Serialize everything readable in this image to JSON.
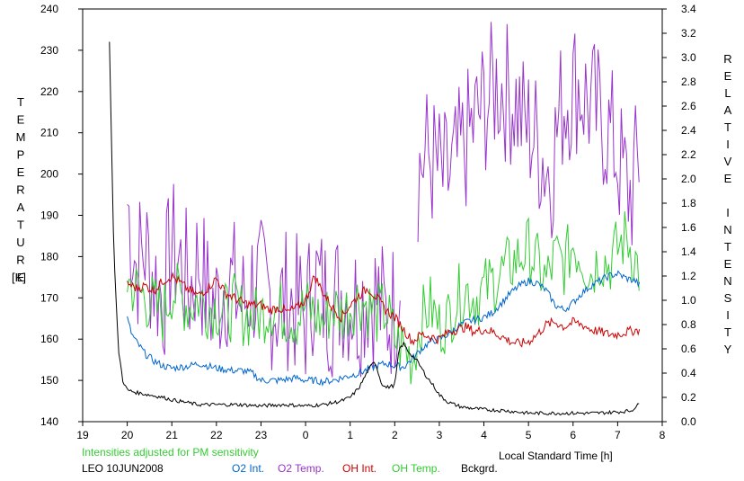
{
  "chart_data": {
    "type": "line",
    "station": "LEO 10JUN2008",
    "note": "Intensities adjusted for PM sensitivity",
    "xlabel": "Local Standard Time [h]",
    "x_ticks": [
      "19",
      "20",
      "21",
      "22",
      "23",
      "0",
      "1",
      "2",
      "3",
      "4",
      "5",
      "6",
      "7",
      "8"
    ],
    "xlim_hours": [
      19,
      32
    ],
    "y_left": {
      "label": "TEMPERATURE",
      "unit": "[K]",
      "ylim": [
        140,
        240
      ],
      "ticks": [
        "140",
        "150",
        "160",
        "170",
        "180",
        "190",
        "200",
        "210",
        "220",
        "230",
        "240"
      ]
    },
    "y_right": {
      "label": "RELATIVE INTENSITY",
      "ylim": [
        0.0,
        3.4
      ],
      "ticks": [
        "0.0",
        "0.2",
        "0.4",
        "0.6",
        "0.8",
        "1.0",
        "1.2",
        "1.4",
        "1.6",
        "1.8",
        "2.0",
        "2.2",
        "2.4",
        "2.6",
        "2.8",
        "3.0",
        "3.2",
        "3.4"
      ]
    },
    "grid": false,
    "legend": [
      "O2 Int.",
      "O2 Temp.",
      "OH Int.",
      "OH Temp.",
      "Bckgrd."
    ],
    "series": [
      {
        "name": "O2 Temp.",
        "axis": "left",
        "color": "#9933cc",
        "x": [
          20.0,
          20.2,
          20.4,
          20.6,
          20.8,
          21.0,
          21.2,
          21.4,
          21.6,
          21.8,
          22.0,
          22.2,
          22.4,
          22.6,
          22.8,
          23.0,
          23.2,
          23.4,
          23.6,
          23.8,
          24.0,
          24.2,
          24.4,
          24.6,
          24.8,
          25.0,
          25.2,
          25.4,
          25.6,
          25.8,
          26.0,
          26.2,
          26.5,
          26.7,
          26.9,
          27.1,
          27.3,
          27.5,
          27.7,
          27.9,
          28.1,
          28.3,
          28.5,
          28.7,
          28.9,
          29.1,
          29.3,
          29.5,
          29.7,
          29.9,
          30.1,
          30.3,
          30.5,
          30.7,
          30.9,
          31.1,
          31.3,
          31.5
        ],
        "values": [
          193,
          178,
          182,
          175,
          170,
          182,
          178,
          172,
          180,
          170,
          168,
          175,
          172,
          168,
          174,
          172,
          170,
          168,
          170,
          168,
          165,
          175,
          170,
          168,
          172,
          170,
          168,
          172,
          170,
          165,
          168,
          182,
          200,
          205,
          202,
          198,
          200,
          205,
          210,
          215,
          218,
          222,
          220,
          218,
          212,
          210,
          205,
          200,
          215,
          220,
          222,
          218,
          215,
          212,
          208,
          200,
          195,
          205
        ]
      },
      {
        "name": "OH Temp.",
        "axis": "left",
        "color": "#33cc33",
        "x": [
          20.0,
          20.2,
          20.4,
          20.6,
          20.8,
          21.0,
          21.2,
          21.4,
          21.6,
          21.8,
          22.0,
          22.2,
          22.4,
          22.6,
          22.8,
          23.0,
          23.2,
          23.4,
          23.6,
          23.8,
          24.0,
          24.2,
          24.4,
          24.6,
          24.8,
          25.0,
          25.2,
          25.4,
          25.6,
          25.8,
          26.0,
          26.2,
          26.4,
          26.6,
          26.8,
          27.0,
          27.2,
          27.4,
          27.6,
          27.8,
          28.0,
          28.2,
          28.4,
          28.6,
          28.8,
          29.0,
          29.2,
          29.4,
          29.6,
          29.8,
          30.0,
          30.2,
          30.4,
          30.6,
          30.8,
          31.0,
          31.2,
          31.5
        ],
        "values": [
          174,
          172,
          170,
          168,
          166,
          172,
          170,
          168,
          170,
          168,
          168,
          166,
          168,
          166,
          165,
          166,
          168,
          167,
          166,
          165,
          168,
          166,
          164,
          168,
          166,
          168,
          170,
          168,
          166,
          167,
          160,
          158,
          155,
          165,
          168,
          163,
          165,
          170,
          172,
          170,
          172,
          174,
          176,
          178,
          180,
          182,
          178,
          174,
          180,
          178,
          183,
          180,
          176,
          180,
          178,
          182,
          185,
          176
        ]
      },
      {
        "name": "O2 Int.",
        "axis": "right",
        "color": "#0066cc",
        "x": [
          20.0,
          20.1,
          20.2,
          20.4,
          20.6,
          20.8,
          21.0,
          21.2,
          21.4,
          21.6,
          21.8,
          22.0,
          22.2,
          22.4,
          22.6,
          22.8,
          23.0,
          23.2,
          23.4,
          23.6,
          23.8,
          24.0,
          24.2,
          24.4,
          24.6,
          24.8,
          25.0,
          25.2,
          25.4,
          25.6,
          25.8,
          26.0,
          26.2,
          26.4,
          26.6,
          26.8,
          27.0,
          27.2,
          27.4,
          27.6,
          27.8,
          28.0,
          28.2,
          28.4,
          28.6,
          28.8,
          29.0,
          29.2,
          29.4,
          29.6,
          29.8,
          30.0,
          30.2,
          30.4,
          30.6,
          30.8,
          31.0,
          31.2,
          31.4,
          31.5
        ],
        "values": [
          0.85,
          0.72,
          0.66,
          0.56,
          0.5,
          0.46,
          0.44,
          0.45,
          0.46,
          0.48,
          0.46,
          0.44,
          0.43,
          0.42,
          0.42,
          0.4,
          0.34,
          0.34,
          0.34,
          0.35,
          0.36,
          0.34,
          0.34,
          0.33,
          0.34,
          0.36,
          0.38,
          0.4,
          0.43,
          0.46,
          0.48,
          0.46,
          0.45,
          0.52,
          0.6,
          0.66,
          0.68,
          0.72,
          0.78,
          0.82,
          0.84,
          0.86,
          0.9,
          0.98,
          1.06,
          1.12,
          1.16,
          1.14,
          1.08,
          0.96,
          0.92,
          0.98,
          1.06,
          1.12,
          1.16,
          1.2,
          1.22,
          1.18,
          1.16,
          1.12
        ]
      },
      {
        "name": "OH Int.",
        "axis": "right",
        "color": "#cc0000",
        "x": [
          20.0,
          20.2,
          20.4,
          20.6,
          20.8,
          21.0,
          21.2,
          21.4,
          21.6,
          21.8,
          22.0,
          22.2,
          22.4,
          22.6,
          22.8,
          23.0,
          23.2,
          23.4,
          23.6,
          23.8,
          24.0,
          24.2,
          24.4,
          24.6,
          24.8,
          25.0,
          25.2,
          25.4,
          25.6,
          25.8,
          26.0,
          26.2,
          26.4,
          26.6,
          26.8,
          27.0,
          27.2,
          27.4,
          27.6,
          27.8,
          28.0,
          28.2,
          28.4,
          28.6,
          28.8,
          29.0,
          29.2,
          29.4,
          29.6,
          29.8,
          30.0,
          30.2,
          30.4,
          30.6,
          30.8,
          31.0,
          31.2,
          31.5
        ],
        "values": [
          1.14,
          1.1,
          1.12,
          1.08,
          1.16,
          1.2,
          1.14,
          1.08,
          1.04,
          1.1,
          1.18,
          1.06,
          1.02,
          0.98,
          0.96,
          0.96,
          0.92,
          0.94,
          0.9,
          0.94,
          1.0,
          1.2,
          1.06,
          0.94,
          0.86,
          0.96,
          1.04,
          1.1,
          1.02,
          0.92,
          0.86,
          0.76,
          0.66,
          0.72,
          0.7,
          0.68,
          0.74,
          0.76,
          0.78,
          0.74,
          0.76,
          0.74,
          0.7,
          0.66,
          0.64,
          0.66,
          0.72,
          0.8,
          0.82,
          0.78,
          0.82,
          0.8,
          0.76,
          0.74,
          0.72,
          0.72,
          0.74,
          0.76
        ]
      },
      {
        "name": "Bckgrd.",
        "axis": "right",
        "color": "#000000",
        "x": [
          19.6,
          19.7,
          19.8,
          19.9,
          20.0,
          20.2,
          20.5,
          20.8,
          21.0,
          21.3,
          21.6,
          22.0,
          22.5,
          23.0,
          23.5,
          24.0,
          24.4,
          24.8,
          25.0,
          25.2,
          25.4,
          25.55,
          25.7,
          25.8,
          26.0,
          26.1,
          26.2,
          26.3,
          26.5,
          26.7,
          26.9,
          27.0,
          27.2,
          27.5,
          28.0,
          28.5,
          29.0,
          29.5,
          30.0,
          30.5,
          31.0,
          31.3,
          31.5
        ],
        "values": [
          3.12,
          1.4,
          0.6,
          0.34,
          0.26,
          0.24,
          0.22,
          0.2,
          0.18,
          0.16,
          0.14,
          0.14,
          0.14,
          0.13,
          0.14,
          0.13,
          0.14,
          0.17,
          0.2,
          0.28,
          0.42,
          0.5,
          0.32,
          0.28,
          0.3,
          0.6,
          0.64,
          0.58,
          0.5,
          0.38,
          0.28,
          0.22,
          0.16,
          0.12,
          0.1,
          0.09,
          0.07,
          0.07,
          0.07,
          0.07,
          0.08,
          0.09,
          0.15
        ]
      }
    ]
  }
}
